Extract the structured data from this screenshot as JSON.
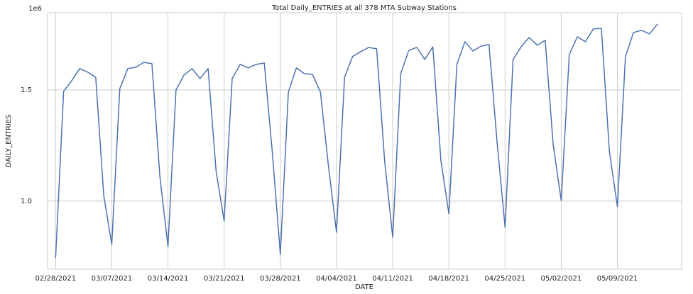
{
  "chart_data": {
    "type": "line",
    "title": "Total Daily_ENTRIES at all 378 MTA Subway Stations",
    "x_label": "DATE",
    "y_label": "DAILY_ENTRIES",
    "y_offset_label": "1e6",
    "x": [
      "2021-02-28",
      "2021-03-01",
      "2021-03-02",
      "2021-03-03",
      "2021-03-04",
      "2021-03-05",
      "2021-03-06",
      "2021-03-07",
      "2021-03-08",
      "2021-03-09",
      "2021-03-10",
      "2021-03-11",
      "2021-03-12",
      "2021-03-13",
      "2021-03-14",
      "2021-03-15",
      "2021-03-16",
      "2021-03-17",
      "2021-03-18",
      "2021-03-19",
      "2021-03-20",
      "2021-03-21",
      "2021-03-22",
      "2021-03-23",
      "2021-03-24",
      "2021-03-25",
      "2021-03-26",
      "2021-03-27",
      "2021-03-28",
      "2021-03-29",
      "2021-03-30",
      "2021-03-31",
      "2021-04-01",
      "2021-04-02",
      "2021-04-03",
      "2021-04-04",
      "2021-04-05",
      "2021-04-06",
      "2021-04-07",
      "2021-04-08",
      "2021-04-09",
      "2021-04-10",
      "2021-04-11",
      "2021-04-12",
      "2021-04-13",
      "2021-04-14",
      "2021-04-15",
      "2021-04-16",
      "2021-04-17",
      "2021-04-18",
      "2021-04-19",
      "2021-04-20",
      "2021-04-21",
      "2021-04-22",
      "2021-04-23",
      "2021-04-24",
      "2021-04-25",
      "2021-04-26",
      "2021-04-27",
      "2021-04-28",
      "2021-04-29",
      "2021-04-30",
      "2021-05-01",
      "2021-05-02",
      "2021-05-03",
      "2021-05-04",
      "2021-05-05",
      "2021-05-06",
      "2021-05-07",
      "2021-05-08",
      "2021-05-09",
      "2021-05-10",
      "2021-05-11",
      "2021-05-12",
      "2021-05-13",
      "2021-05-14"
    ],
    "series": [
      {
        "name": "DAILY_ENTRIES",
        "color": "#4c72b0",
        "values": [
          0.745,
          1.494,
          1.541,
          1.596,
          1.58,
          1.557,
          1.025,
          0.806,
          1.506,
          1.596,
          1.602,
          1.624,
          1.618,
          1.108,
          0.796,
          1.5,
          1.567,
          1.596,
          1.551,
          1.596,
          1.134,
          0.911,
          1.551,
          1.615,
          1.599,
          1.615,
          1.621,
          1.22,
          0.761,
          1.49,
          1.599,
          1.573,
          1.57,
          1.49,
          1.156,
          0.86,
          1.557,
          1.65,
          1.672,
          1.691,
          1.685,
          1.178,
          0.838,
          1.573,
          1.678,
          1.691,
          1.637,
          1.694,
          1.185,
          0.943,
          1.615,
          1.717,
          1.675,
          1.697,
          1.704,
          1.268,
          0.882,
          1.637,
          1.694,
          1.736,
          1.701,
          1.723,
          1.252,
          1.003,
          1.659,
          1.739,
          1.717,
          1.774,
          1.777,
          1.223,
          0.975,
          1.65,
          1.758,
          1.768,
          1.752,
          1.796
        ]
      }
    ],
    "xlim": [
      "2021-02-27",
      "2021-05-17"
    ],
    "xticks": [
      {
        "value": "2021-02-28",
        "label": "02/28/2021"
      },
      {
        "value": "2021-03-07",
        "label": "03/07/2021"
      },
      {
        "value": "2021-03-14",
        "label": "03/14/2021"
      },
      {
        "value": "2021-03-21",
        "label": "03/21/2021"
      },
      {
        "value": "2021-03-28",
        "label": "03/28/2021"
      },
      {
        "value": "2021-04-04",
        "label": "04/04/2021"
      },
      {
        "value": "2021-04-11",
        "label": "04/11/2021"
      },
      {
        "value": "2021-04-18",
        "label": "04/18/2021"
      },
      {
        "value": "2021-04-25",
        "label": "04/25/2021"
      },
      {
        "value": "2021-05-02",
        "label": "05/02/2021"
      },
      {
        "value": "2021-05-09",
        "label": "05/09/2021"
      }
    ],
    "ylim": [
      0.694,
      1.847
    ],
    "yticks": [
      {
        "value": 1,
        "label": "1.0"
      },
      1.5
    ],
    "grid": true
  }
}
